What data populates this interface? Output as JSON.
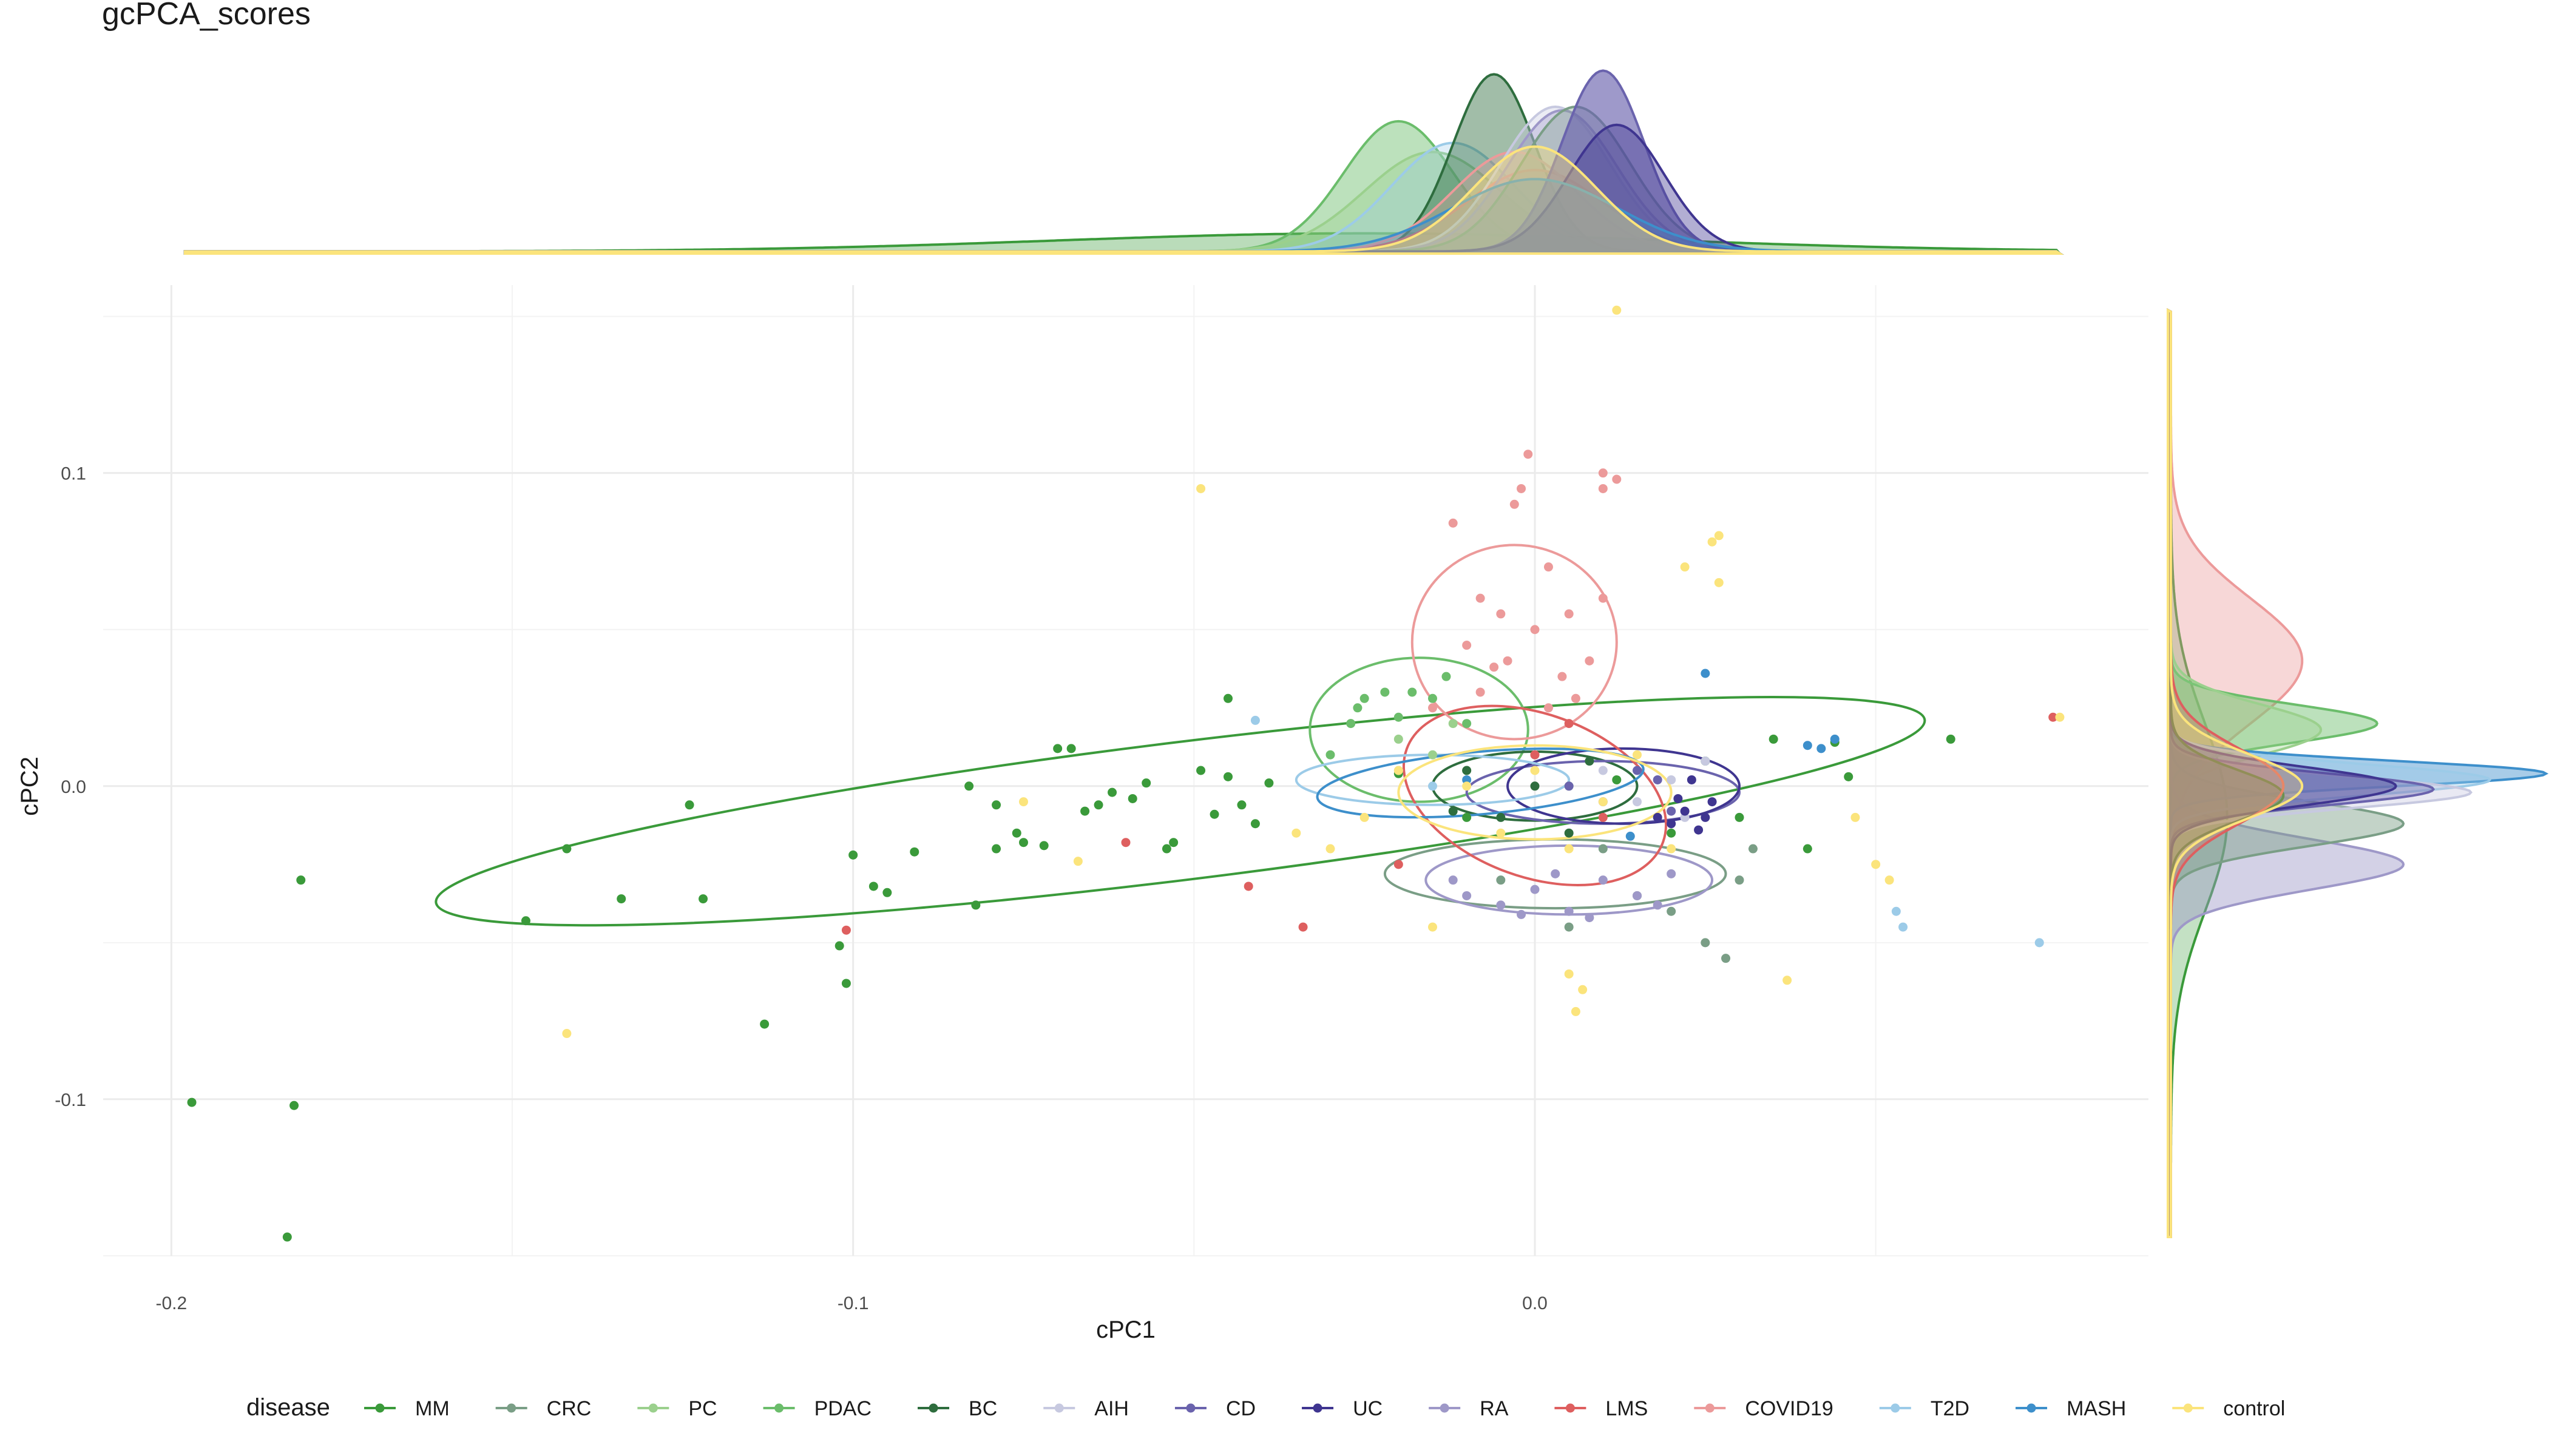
{
  "chart_data": {
    "type": "scatter",
    "title": "gcPCA_scores",
    "xlabel": "cPC1",
    "ylabel": "cPC2",
    "xlim": [
      -0.21,
      0.09
    ],
    "ylim": [
      -0.15,
      0.16
    ],
    "x_ticks": [
      -0.2,
      -0.1,
      0.0
    ],
    "y_ticks": [
      -0.1,
      0.0,
      0.1
    ],
    "x_tick_labels": [
      "-0.2",
      "-0.1",
      "0.0"
    ],
    "y_tick_labels": [
      "-0.1",
      "0.0",
      "0.1"
    ],
    "grid": true,
    "legend_title": "disease",
    "legend_position": "bottom",
    "marginal": "density",
    "series": [
      {
        "name": "MM",
        "color": "#3a9a3a",
        "points": [
          [
            -0.197,
            -0.101
          ],
          [
            -0.183,
            -0.144
          ],
          [
            -0.182,
            -0.102
          ],
          [
            -0.181,
            -0.03
          ],
          [
            -0.148,
            -0.043
          ],
          [
            -0.142,
            -0.02
          ],
          [
            -0.134,
            -0.036
          ],
          [
            -0.124,
            -0.006
          ],
          [
            -0.122,
            -0.036
          ],
          [
            -0.113,
            -0.076
          ],
          [
            -0.101,
            -0.063
          ],
          [
            -0.102,
            -0.051
          ],
          [
            -0.1,
            -0.022
          ],
          [
            -0.097,
            -0.032
          ],
          [
            -0.095,
            -0.034
          ],
          [
            -0.091,
            -0.021
          ],
          [
            -0.083,
            0.0
          ],
          [
            -0.082,
            -0.038
          ],
          [
            -0.079,
            -0.006
          ],
          [
            -0.079,
            -0.02
          ],
          [
            -0.076,
            -0.015
          ],
          [
            -0.075,
            -0.018
          ],
          [
            -0.072,
            -0.019
          ],
          [
            -0.07,
            0.012
          ],
          [
            -0.068,
            0.012
          ],
          [
            -0.066,
            -0.008
          ],
          [
            -0.064,
            -0.006
          ],
          [
            -0.062,
            -0.002
          ],
          [
            -0.059,
            -0.004
          ],
          [
            -0.057,
            0.001
          ],
          [
            -0.054,
            -0.02
          ],
          [
            -0.053,
            -0.018
          ],
          [
            -0.049,
            0.005
          ],
          [
            -0.047,
            -0.009
          ],
          [
            -0.045,
            0.003
          ],
          [
            -0.043,
            -0.006
          ],
          [
            -0.041,
            -0.012
          ],
          [
            -0.039,
            0.001
          ],
          [
            -0.045,
            0.028
          ],
          [
            -0.02,
            0.004
          ],
          [
            -0.01,
            -0.01
          ],
          [
            0.012,
            0.002
          ],
          [
            0.02,
            -0.015
          ],
          [
            0.025,
            0.008
          ],
          [
            0.03,
            -0.01
          ],
          [
            0.035,
            0.015
          ],
          [
            0.04,
            -0.02
          ],
          [
            0.044,
            0.014
          ],
          [
            0.046,
            0.003
          ],
          [
            0.061,
            0.015
          ]
        ],
        "ellipse": {
          "cx": -0.052,
          "cy": -0.008,
          "rx": 0.11,
          "ry": 0.022,
          "angle_deg": 7
        }
      },
      {
        "name": "CRC",
        "color": "#7a9e86",
        "points": [
          [
            0.01,
            -0.02
          ],
          [
            0.02,
            -0.04
          ],
          [
            0.025,
            -0.05
          ],
          [
            0.03,
            -0.03
          ],
          [
            0.015,
            -0.035
          ],
          [
            0.028,
            -0.055
          ],
          [
            -0.005,
            -0.03
          ],
          [
            0.005,
            -0.045
          ],
          [
            0.032,
            -0.02
          ]
        ],
        "ellipse": {
          "cx": 0.003,
          "cy": -0.028,
          "rx": 0.025,
          "ry": 0.011,
          "angle_deg": 0
        }
      },
      {
        "name": "PC",
        "color": "#9bd08d",
        "points": [
          [
            -0.02,
            0.015
          ],
          [
            -0.015,
            0.01
          ],
          [
            -0.01,
            0.005
          ],
          [
            0.0,
            0.01
          ],
          [
            0.005,
            0.0
          ],
          [
            -0.012,
            0.02
          ]
        ],
        "ellipse": null
      },
      {
        "name": "PDAC",
        "color": "#6bbd6b",
        "points": [
          [
            -0.026,
            0.025
          ],
          [
            -0.025,
            0.028
          ],
          [
            -0.022,
            0.03
          ],
          [
            -0.02,
            0.022
          ],
          [
            -0.018,
            0.03
          ],
          [
            -0.015,
            0.028
          ],
          [
            -0.013,
            0.035
          ],
          [
            -0.01,
            0.02
          ],
          [
            -0.027,
            0.02
          ],
          [
            -0.03,
            0.01
          ]
        ],
        "ellipse": {
          "cx": -0.017,
          "cy": 0.018,
          "rx": 0.016,
          "ry": 0.023,
          "angle_deg": 0
        }
      },
      {
        "name": "BC",
        "color": "#2e6d3e",
        "points": [
          [
            -0.01,
            0.005
          ],
          [
            -0.005,
            -0.01
          ],
          [
            0.0,
            0.0
          ],
          [
            0.005,
            -0.015
          ],
          [
            0.008,
            0.008
          ],
          [
            -0.012,
            -0.008
          ]
        ],
        "ellipse": {
          "cx": 0.0,
          "cy": 0.0,
          "rx": 0.015,
          "ry": 0.011,
          "angle_deg": 0
        }
      },
      {
        "name": "AIH",
        "color": "#c7c9e0",
        "points": [
          [
            0.01,
            0.005
          ],
          [
            0.015,
            -0.005
          ],
          [
            0.02,
            0.002
          ],
          [
            0.025,
            0.008
          ],
          [
            0.022,
            -0.01
          ]
        ],
        "ellipse": null
      },
      {
        "name": "CD",
        "color": "#6a63ad",
        "points": [
          [
            0.005,
            0.0
          ],
          [
            0.01,
            -0.005
          ],
          [
            0.015,
            0.005
          ],
          [
            0.02,
            -0.008
          ],
          [
            0.018,
            0.002
          ]
        ],
        "ellipse": {
          "cx": 0.01,
          "cy": -0.002,
          "rx": 0.02,
          "ry": 0.01,
          "angle_deg": 0
        }
      },
      {
        "name": "UC",
        "color": "#3f3590",
        "points": [
          [
            0.018,
            -0.01
          ],
          [
            0.02,
            -0.012
          ],
          [
            0.022,
            -0.008
          ],
          [
            0.024,
            -0.014
          ],
          [
            0.026,
            -0.005
          ],
          [
            0.023,
            0.002
          ],
          [
            0.021,
            -0.004
          ],
          [
            0.025,
            -0.01
          ]
        ],
        "ellipse": {
          "cx": 0.013,
          "cy": 0.0,
          "rx": 0.017,
          "ry": 0.012,
          "angle_deg": 0
        }
      },
      {
        "name": "RA",
        "color": "#9e98c8",
        "points": [
          [
            -0.01,
            -0.035
          ],
          [
            -0.005,
            -0.038
          ],
          [
            0.0,
            -0.033
          ],
          [
            0.005,
            -0.04
          ],
          [
            0.01,
            -0.03
          ],
          [
            0.015,
            -0.035
          ],
          [
            0.02,
            -0.028
          ],
          [
            -0.012,
            -0.03
          ],
          [
            0.003,
            -0.028
          ],
          [
            0.008,
            -0.042
          ],
          [
            0.018,
            -0.038
          ],
          [
            -0.002,
            -0.041
          ]
        ],
        "ellipse": {
          "cx": 0.005,
          "cy": -0.03,
          "rx": 0.021,
          "ry": 0.011,
          "angle_deg": 0
        }
      },
      {
        "name": "LMS",
        "color": "#de5f5f",
        "points": [
          [
            -0.101,
            -0.046
          ],
          [
            -0.034,
            -0.045
          ],
          [
            -0.06,
            -0.018
          ],
          [
            -0.042,
            -0.032
          ],
          [
            -0.02,
            -0.025
          ],
          [
            0.0,
            0.01
          ],
          [
            0.01,
            -0.01
          ],
          [
            0.005,
            0.02
          ],
          [
            0.076,
            0.022
          ]
        ],
        "ellipse": {
          "cx": 0.0,
          "cy": -0.003,
          "rx": 0.02,
          "ry": 0.026,
          "angle_deg": -20
        }
      },
      {
        "name": "COVID19",
        "color": "#ec9a9a",
        "points": [
          [
            -0.012,
            0.084
          ],
          [
            -0.008,
            0.06
          ],
          [
            -0.005,
            0.055
          ],
          [
            -0.003,
            0.09
          ],
          [
            -0.002,
            0.095
          ],
          [
            -0.001,
            0.106
          ],
          [
            0.002,
            0.07
          ],
          [
            0.005,
            0.055
          ],
          [
            0.008,
            0.04
          ],
          [
            0.01,
            0.095
          ],
          [
            0.012,
            0.098
          ],
          [
            0.01,
            0.1
          ],
          [
            -0.01,
            0.045
          ],
          [
            -0.006,
            0.038
          ],
          [
            -0.004,
            0.04
          ],
          [
            0.0,
            0.05
          ],
          [
            0.004,
            0.035
          ],
          [
            -0.008,
            0.03
          ],
          [
            0.006,
            0.028
          ],
          [
            -0.015,
            0.025
          ],
          [
            0.002,
            0.025
          ],
          [
            0.01,
            0.06
          ]
        ],
        "ellipse": {
          "cx": -0.003,
          "cy": 0.046,
          "rx": 0.015,
          "ry": 0.031,
          "angle_deg": 0
        }
      },
      {
        "name": "T2D",
        "color": "#9ccbe8",
        "points": [
          [
            -0.041,
            0.021
          ],
          [
            0.053,
            -0.04
          ],
          [
            0.054,
            -0.045
          ],
          [
            0.074,
            -0.05
          ],
          [
            -0.02,
            0.005
          ],
          [
            -0.015,
            0.0
          ]
        ],
        "ellipse": {
          "cx": -0.015,
          "cy": 0.002,
          "rx": 0.02,
          "ry": 0.008,
          "angle_deg": 0
        }
      },
      {
        "name": "MASH",
        "color": "#3d8fcb",
        "points": [
          [
            0.025,
            0.036
          ],
          [
            0.04,
            0.013
          ],
          [
            0.042,
            0.012
          ],
          [
            0.044,
            0.015
          ],
          [
            -0.01,
            0.002
          ],
          [
            0.014,
            -0.016
          ]
        ],
        "ellipse": {
          "cx": -0.008,
          "cy": 0.001,
          "rx": 0.024,
          "ry": 0.01,
          "angle_deg": 5
        }
      },
      {
        "name": "control",
        "color": "#fbe47c",
        "points": [
          [
            -0.049,
            0.095
          ],
          [
            -0.142,
            -0.079
          ],
          [
            0.012,
            0.152
          ],
          [
            0.026,
            0.078
          ],
          [
            0.027,
            0.08
          ],
          [
            0.027,
            0.065
          ],
          [
            0.022,
            0.07
          ],
          [
            0.05,
            -0.025
          ],
          [
            0.052,
            -0.03
          ],
          [
            0.047,
            -0.01
          ],
          [
            0.037,
            -0.062
          ],
          [
            0.005,
            -0.06
          ],
          [
            0.006,
            -0.072
          ],
          [
            0.007,
            -0.065
          ],
          [
            -0.03,
            -0.02
          ],
          [
            -0.035,
            -0.015
          ],
          [
            -0.025,
            -0.01
          ],
          [
            -0.02,
            0.005
          ],
          [
            -0.01,
            0.0
          ],
          [
            0.0,
            0.005
          ],
          [
            0.01,
            -0.005
          ],
          [
            0.015,
            0.01
          ],
          [
            0.005,
            -0.02
          ],
          [
            -0.005,
            -0.015
          ],
          [
            0.02,
            -0.02
          ],
          [
            -0.067,
            -0.024
          ],
          [
            -0.075,
            -0.005
          ],
          [
            0.077,
            0.022
          ],
          [
            -0.015,
            -0.045
          ]
        ],
        "ellipse": {
          "cx": 0.0,
          "cy": -0.002,
          "rx": 0.02,
          "ry": 0.015,
          "angle_deg": 0
        }
      }
    ],
    "marginal_x_density": [
      {
        "name": "MM",
        "center": -0.025,
        "sd": 0.045,
        "peak": 0.1,
        "fill": 0.35
      },
      {
        "name": "PDAC",
        "center": -0.02,
        "sd": 0.008,
        "peak": 0.72,
        "fill": 0.45
      },
      {
        "name": "PC",
        "center": -0.015,
        "sd": 0.01,
        "peak": 0.55,
        "fill": 0.35
      },
      {
        "name": "T2D",
        "center": -0.012,
        "sd": 0.009,
        "peak": 0.6,
        "fill": 0.3
      },
      {
        "name": "BC",
        "center": -0.006,
        "sd": 0.006,
        "peak": 0.98,
        "fill": 0.45
      },
      {
        "name": "LMS",
        "center": 0.0,
        "sd": 0.01,
        "peak": 0.45,
        "fill": 0.3
      },
      {
        "name": "COVID19",
        "center": -0.003,
        "sd": 0.009,
        "peak": 0.55,
        "fill": 0.3
      },
      {
        "name": "AIH",
        "center": 0.003,
        "sd": 0.008,
        "peak": 0.8,
        "fill": 0.35
      },
      {
        "name": "RA",
        "center": 0.004,
        "sd": 0.008,
        "peak": 0.78,
        "fill": 0.35
      },
      {
        "name": "CRC",
        "center": 0.006,
        "sd": 0.008,
        "peak": 0.8,
        "fill": 0.35
      },
      {
        "name": "CD",
        "center": 0.01,
        "sd": 0.006,
        "peak": 1.0,
        "fill": 0.65
      },
      {
        "name": "UC",
        "center": 0.012,
        "sd": 0.007,
        "peak": 0.7,
        "fill": 0.4
      },
      {
        "name": "MASH",
        "center": 0.0,
        "sd": 0.012,
        "peak": 0.4,
        "fill": 0.3
      },
      {
        "name": "control",
        "center": 0.0,
        "sd": 0.009,
        "peak": 0.58,
        "fill": 0.4
      }
    ],
    "marginal_y_density": [
      {
        "name": "MM",
        "center": -0.01,
        "sd": 0.03,
        "peak": 0.15,
        "fill": 0.3
      },
      {
        "name": "COVID19",
        "center": 0.04,
        "sd": 0.02,
        "peak": 0.35,
        "fill": 0.4
      },
      {
        "name": "PDAC",
        "center": 0.02,
        "sd": 0.006,
        "peak": 0.55,
        "fill": 0.45
      },
      {
        "name": "PC",
        "center": 0.018,
        "sd": 0.008,
        "peak": 0.4,
        "fill": 0.35
      },
      {
        "name": "RA",
        "center": -0.025,
        "sd": 0.008,
        "peak": 0.62,
        "fill": 0.45
      },
      {
        "name": "CRC",
        "center": -0.012,
        "sd": 0.007,
        "peak": 0.62,
        "fill": 0.45
      },
      {
        "name": "MASH",
        "center": 0.004,
        "sd": 0.004,
        "peak": 1.0,
        "fill": 0.45
      },
      {
        "name": "T2D",
        "center": 0.002,
        "sd": 0.005,
        "peak": 0.85,
        "fill": 0.4
      },
      {
        "name": "AIH",
        "center": -0.002,
        "sd": 0.005,
        "peak": 0.8,
        "fill": 0.4
      },
      {
        "name": "CD",
        "center": -0.001,
        "sd": 0.005,
        "peak": 0.7,
        "fill": 0.35
      },
      {
        "name": "UC",
        "center": 0.0,
        "sd": 0.006,
        "peak": 0.6,
        "fill": 0.35
      },
      {
        "name": "BC",
        "center": -0.003,
        "sd": 0.008,
        "peak": 0.3,
        "fill": 0.35
      },
      {
        "name": "LMS",
        "center": 0.0,
        "sd": 0.012,
        "peak": 0.3,
        "fill": 0.3
      },
      {
        "name": "control",
        "center": 0.0,
        "sd": 0.01,
        "peak": 0.35,
        "fill": 0.3
      }
    ]
  }
}
